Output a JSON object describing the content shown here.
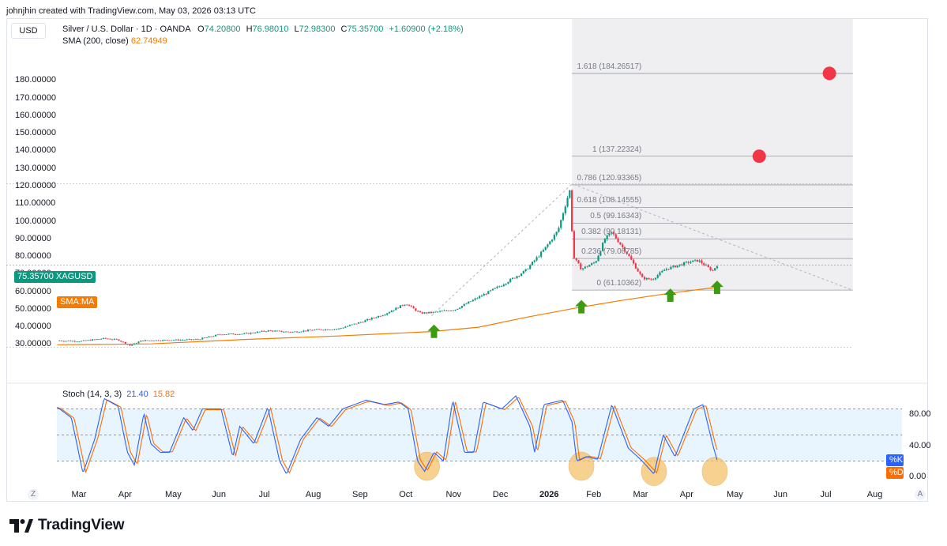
{
  "header": "johnjhin created with TradingView.com, May 03, 2026 03:13 UTC",
  "currency": "USD",
  "legend": {
    "symbol": "Silver / U.S. Dollar · 1D · OANDA",
    "o_key": "O",
    "o_val": "74.20800",
    "h_key": "H",
    "h_val": "76.98010",
    "l_key": "L",
    "l_val": "72.98300",
    "c_key": "C",
    "c_val": "75.35700",
    "change": "+1.60900 (+2.18%)",
    "sma_label": "SMA (200, close)",
    "sma_val": "62.74949"
  },
  "price_tag": "75.35700 XAGUSD",
  "sma_tag": "SMA:MA",
  "stoch": {
    "label": "Stoch (14, 3, 3)",
    "k_val": "21.40",
    "d_val": "15.82",
    "k_tag": "%K",
    "d_tag": "%D",
    "levels": [
      "80.00",
      "40.00",
      "0.00"
    ]
  },
  "fib_labels": [
    "1.618 (184.26517)",
    "1 (137.22324)",
    "0.786 (120.93365)",
    "0.618 (108.14555)",
    "0.5 (99.16343)",
    "0.382 (90.18131)",
    "0.236 (79.06785)",
    "0 (61.10362)"
  ],
  "corner_left": "Z",
  "corner_right": "A",
  "logo_text": "TradingView",
  "colors": {
    "up": "#089981",
    "down": "#f23645",
    "sma": "#f57c00",
    "stoch_k": "#2962ff",
    "stoch_d": "#ff6d00",
    "arrow": "#3d9b13",
    "circle": "#f5c26b",
    "red_dot": "#f23645"
  },
  "chart_data": {
    "type": "candlestick",
    "symbol": "Silver / U.S. Dollar",
    "y_axis_ticks": [
      180,
      170,
      160,
      150,
      140,
      130,
      120,
      110,
      100,
      90,
      80,
      70,
      60,
      50,
      40,
      30
    ],
    "y_axis_tick_labels": [
      "180.00000",
      "170.00000",
      "160.00000",
      "150.00000",
      "140.00000",
      "130.00000",
      "120.00000",
      "110.00000",
      "100.00000",
      "90.00000",
      "80.00000",
      "70.00000",
      "60.00000",
      "50.00000",
      "40.00000",
      "30.00000"
    ],
    "ylim": [
      27,
      197
    ],
    "x_months": [
      "Mar",
      "Apr",
      "May",
      "Jun",
      "Jul",
      "Aug",
      "Sep",
      "Oct",
      "Nov",
      "Dec",
      "2026",
      "Feb",
      "Mar",
      "Apr",
      "May",
      "Jun",
      "Jul",
      "Aug"
    ],
    "price_path": [
      {
        "m": 0.0,
        "v": 32.3
      },
      {
        "m": 0.5,
        "v": 32.0
      },
      {
        "m": 1.0,
        "v": 33.6
      },
      {
        "m": 1.3,
        "v": 32.8
      },
      {
        "m": 1.55,
        "v": 29.5
      },
      {
        "m": 1.8,
        "v": 32.3
      },
      {
        "m": 2.5,
        "v": 32.7
      },
      {
        "m": 3.0,
        "v": 33.0
      },
      {
        "m": 3.5,
        "v": 36.0
      },
      {
        "m": 4.0,
        "v": 36.2
      },
      {
        "m": 4.5,
        "v": 38.0
      },
      {
        "m": 5.0,
        "v": 37.2
      },
      {
        "m": 5.5,
        "v": 38.5
      },
      {
        "m": 6.0,
        "v": 39.0
      },
      {
        "m": 6.5,
        "v": 43.0
      },
      {
        "m": 7.0,
        "v": 47.5
      },
      {
        "m": 7.45,
        "v": 53.5
      },
      {
        "m": 7.75,
        "v": 48.0
      },
      {
        "m": 8.0,
        "v": 48.3
      },
      {
        "m": 8.5,
        "v": 50.0
      },
      {
        "m": 9.0,
        "v": 57.0
      },
      {
        "m": 9.5,
        "v": 64.0
      },
      {
        "m": 10.0,
        "v": 72.0
      },
      {
        "m": 10.4,
        "v": 84.0
      },
      {
        "m": 10.7,
        "v": 95.0
      },
      {
        "m": 10.95,
        "v": 118.0
      },
      {
        "m": 11.03,
        "v": 80.0
      },
      {
        "m": 11.2,
        "v": 73.0
      },
      {
        "m": 11.5,
        "v": 77.0
      },
      {
        "m": 11.7,
        "v": 90.0
      },
      {
        "m": 11.85,
        "v": 94.0
      },
      {
        "m": 12.2,
        "v": 81.0
      },
      {
        "m": 12.5,
        "v": 68.0
      },
      {
        "m": 12.7,
        "v": 67.0
      },
      {
        "m": 13.0,
        "v": 73.0
      },
      {
        "m": 13.5,
        "v": 77.0
      },
      {
        "m": 13.7,
        "v": 78.0
      },
      {
        "m": 14.0,
        "v": 72.0
      },
      {
        "m": 14.1,
        "v": 75.4
      }
    ],
    "sma_200": [
      {
        "m": 0.0,
        "v": 30.0
      },
      {
        "m": 2.0,
        "v": 30.5
      },
      {
        "m": 4.0,
        "v": 33.0
      },
      {
        "m": 6.0,
        "v": 35.0
      },
      {
        "m": 8.0,
        "v": 37.5
      },
      {
        "m": 9.0,
        "v": 40.0
      },
      {
        "m": 10.0,
        "v": 45.5
      },
      {
        "m": 11.0,
        "v": 50.5
      },
      {
        "m": 12.0,
        "v": 55.0
      },
      {
        "m": 13.0,
        "v": 59.0
      },
      {
        "m": 14.1,
        "v": 62.7
      }
    ],
    "fib_levels": [
      {
        "ratio": "1.618",
        "value": 184.26517
      },
      {
        "ratio": "1",
        "value": 137.22324
      },
      {
        "ratio": "0.786",
        "value": 120.93365
      },
      {
        "ratio": "0.618",
        "value": 108.14555
      },
      {
        "ratio": "0.5",
        "value": 99.16343
      },
      {
        "ratio": "0.382",
        "value": 90.18131
      },
      {
        "ratio": "0.236",
        "value": 79.06785
      },
      {
        "ratio": "0",
        "value": 61.10362
      }
    ],
    "fib_start_m": 11.0,
    "fib_end_m": 17.0,
    "dashed_trend": [
      {
        "m": 8.0,
        "v": 46.5
      },
      {
        "m": 11.0,
        "v": 121.5
      },
      {
        "m": 17.0,
        "v": 61.0
      }
    ],
    "red_dots": [
      {
        "m": 15.0,
        "v": 137.2
      },
      {
        "m": 16.5,
        "v": 184.3
      }
    ],
    "up_arrows": [
      {
        "m": 8.05,
        "v": 37.0
      },
      {
        "m": 11.2,
        "v": 51.0
      },
      {
        "m": 13.1,
        "v": 57.5
      },
      {
        "m": 14.1,
        "v": 62.0
      }
    ],
    "stoch_ylim": [
      -5,
      105
    ],
    "stoch_levels": [
      80,
      50,
      20
    ],
    "stoch_k": [
      {
        "m": 0.0,
        "v": 82
      },
      {
        "m": 0.3,
        "v": 70
      },
      {
        "m": 0.55,
        "v": 6
      },
      {
        "m": 0.8,
        "v": 45
      },
      {
        "m": 1.0,
        "v": 92
      },
      {
        "m": 1.3,
        "v": 83
      },
      {
        "m": 1.5,
        "v": 30
      },
      {
        "m": 1.65,
        "v": 15
      },
      {
        "m": 1.85,
        "v": 75
      },
      {
        "m": 2.0,
        "v": 40
      },
      {
        "m": 2.2,
        "v": 30
      },
      {
        "m": 2.4,
        "v": 30
      },
      {
        "m": 2.7,
        "v": 70
      },
      {
        "m": 2.9,
        "v": 55
      },
      {
        "m": 3.1,
        "v": 80
      },
      {
        "m": 3.5,
        "v": 80
      },
      {
        "m": 3.75,
        "v": 25
      },
      {
        "m": 3.9,
        "v": 60
      },
      {
        "m": 4.2,
        "v": 40
      },
      {
        "m": 4.5,
        "v": 82
      },
      {
        "m": 4.75,
        "v": 20
      },
      {
        "m": 4.9,
        "v": 5
      },
      {
        "m": 5.2,
        "v": 45
      },
      {
        "m": 5.55,
        "v": 70
      },
      {
        "m": 5.8,
        "v": 60
      },
      {
        "m": 6.1,
        "v": 80
      },
      {
        "m": 6.6,
        "v": 90
      },
      {
        "m": 7.0,
        "v": 85
      },
      {
        "m": 7.3,
        "v": 88
      },
      {
        "m": 7.5,
        "v": 80
      },
      {
        "m": 7.7,
        "v": 20
      },
      {
        "m": 7.85,
        "v": 8
      },
      {
        "m": 8.05,
        "v": 30
      },
      {
        "m": 8.25,
        "v": 20
      },
      {
        "m": 8.45,
        "v": 90
      },
      {
        "m": 8.7,
        "v": 30
      },
      {
        "m": 8.9,
        "v": 30
      },
      {
        "m": 9.1,
        "v": 88
      },
      {
        "m": 9.5,
        "v": 80
      },
      {
        "m": 9.8,
        "v": 95
      },
      {
        "m": 10.1,
        "v": 60
      },
      {
        "m": 10.2,
        "v": 30
      },
      {
        "m": 10.4,
        "v": 85
      },
      {
        "m": 10.8,
        "v": 90
      },
      {
        "m": 11.0,
        "v": 65
      },
      {
        "m": 11.1,
        "v": 20
      },
      {
        "m": 11.3,
        "v": 25
      },
      {
        "m": 11.55,
        "v": 22
      },
      {
        "m": 11.85,
        "v": 85
      },
      {
        "m": 12.2,
        "v": 35
      },
      {
        "m": 12.5,
        "v": 20
      },
      {
        "m": 12.75,
        "v": 5
      },
      {
        "m": 12.95,
        "v": 50
      },
      {
        "m": 13.2,
        "v": 25
      },
      {
        "m": 13.6,
        "v": 80
      },
      {
        "m": 13.8,
        "v": 85
      },
      {
        "m": 14.0,
        "v": 40
      },
      {
        "m": 14.1,
        "v": 21.4
      }
    ],
    "stoch_highlights": [
      {
        "m": 7.9,
        "v": 14
      },
      {
        "m": 11.2,
        "v": 14
      },
      {
        "m": 12.75,
        "v": 8
      },
      {
        "m": 14.05,
        "v": 8
      }
    ]
  }
}
